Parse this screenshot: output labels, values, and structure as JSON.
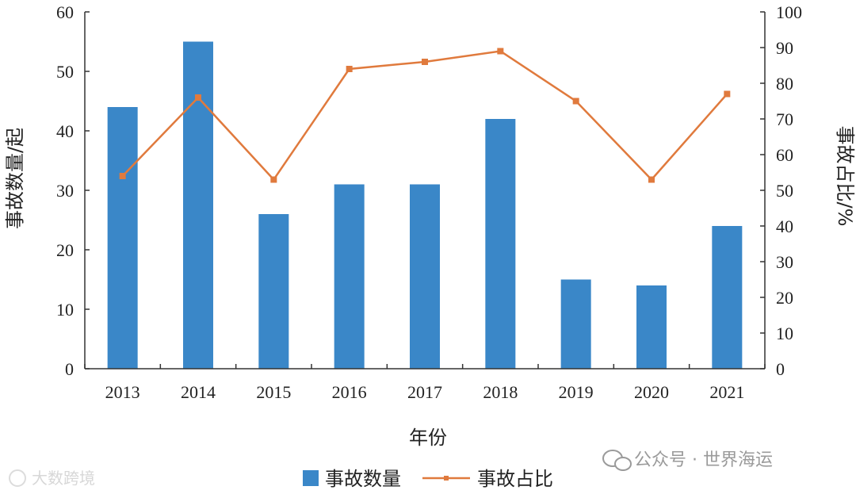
{
  "chart_data": {
    "type": "bar",
    "categories": [
      "2013",
      "2014",
      "2015",
      "2016",
      "2017",
      "2018",
      "2019",
      "2020",
      "2021"
    ],
    "series": [
      {
        "name": "事故数量",
        "type": "bar",
        "axis": "left",
        "values": [
          44,
          55,
          26,
          31,
          31,
          42,
          15,
          14,
          24
        ]
      },
      {
        "name": "事故占比",
        "type": "line",
        "axis": "right",
        "values": [
          54,
          76,
          53,
          84,
          86,
          89,
          75,
          53,
          77
        ]
      }
    ],
    "xlabel": "年份",
    "ylabel": "事故数量/起",
    "y2label": "事故占比/%",
    "ylim": [
      0,
      60
    ],
    "y2lim": [
      0,
      100
    ],
    "yticks": [
      0,
      10,
      20,
      30,
      40,
      50,
      60
    ],
    "y2ticks": [
      0,
      10,
      20,
      30,
      40,
      50,
      60,
      70,
      80,
      90,
      100
    ],
    "grid": false,
    "legend_position": "bottom-center"
  },
  "colors": {
    "bar": "#3a87c8",
    "line": "#e07a3d",
    "axis": "#333333"
  },
  "watermark": {
    "right": "公众号 · 世界海运",
    "left": "大数跨境"
  }
}
